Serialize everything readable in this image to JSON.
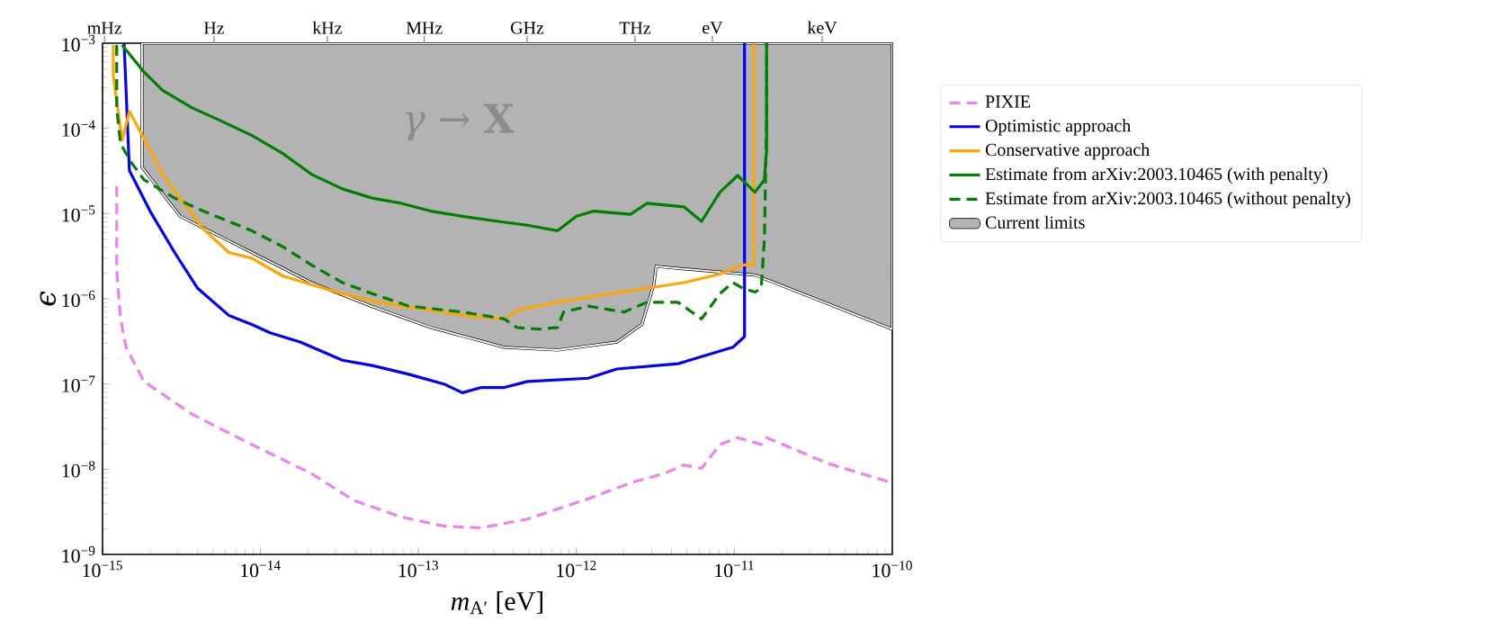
{
  "chart_data": {
    "type": "line",
    "xlabel": "*m*$_{A′}$ [eV]",
    "ylabel": "ϵ",
    "annotations": [
      "*γ* → **X**",
      {
        "text": "mHz",
        "x": 1.03e-15,
        "y": 0.001
      },
      {
        "text": "Hz",
        "x": 5.08e-15,
        "y": 0.001
      },
      {
        "text": "kHz",
        "x": 2.65e-14,
        "y": 0.001
      },
      {
        "text": "MHz",
        "x": 1.09e-13,
        "y": 0.001
      },
      {
        "text": "GHz",
        "x": 4.88e-13,
        "y": 0.001
      },
      {
        "text": "THz",
        "x": 2.35e-12,
        "y": 0.001
      },
      {
        "text": "eV",
        "x": 7.26e-12,
        "y": 0.001
      },
      {
        "text": "keV",
        "x": 3.6e-11,
        "y": 0.001
      }
    ],
    "log": "xy",
    "legend": "right",
    "xlim": [
      1e-15,
      1e-10
    ],
    "ylim": [
      1e-09,
      0.001
    ],
    "xticks": [
      {
        "value": 1e-15,
        "label": "10$^{−15}$"
      },
      {
        "value": 1e-14,
        "label": "10$^{−14}$"
      },
      {
        "value": 1e-13,
        "label": "10$^{−13}$"
      },
      {
        "value": 1e-12,
        "label": "10$^{−12}$"
      },
      {
        "value": 1e-11,
        "label": "10$^{−11}$"
      },
      {
        "value": 1e-10,
        "label": "10$^{−10}$"
      }
    ],
    "yticks": [
      {
        "value": 1e-09,
        "label": "10$^{−9}$"
      },
      {
        "value": 1e-08,
        "label": "10$^{−8}$"
      },
      {
        "value": 1e-07,
        "label": "10$^{−7}$"
      },
      {
        "value": 1e-06,
        "label": "10$^{−6}$"
      },
      {
        "value": 1e-05,
        "label": "10$^{−5}$"
      },
      {
        "value": 0.0001,
        "label": "10$^{−4}$"
      },
      {
        "value": 0.001,
        "label": "10$^{−3}$"
      }
    ],
    "series": [
      {
        "name": "PIXIE",
        "color": "#ee82ee",
        "line_style": "dashed",
        "x": [
          1.23e-15,
          1.23e-15,
          1.3e-15,
          1.41e-15,
          1.83e-15,
          3.7e-15,
          8.8e-15,
          2.1e-14,
          3.9e-14,
          7.8e-14,
          1.45e-13,
          2.5e-13,
          4.9e-13,
          1.19e-12,
          2.2e-12,
          3.6e-12,
          4.8e-12,
          6.2e-12,
          8.1e-12,
          1.05e-11,
          1.48e-11,
          1.6e-11,
          3.9e-11,
          1e-10
        ],
        "values": [
          2.1e-05,
          2.2e-06,
          5.9e-07,
          2.7e-07,
          1.07e-07,
          4.4e-08,
          1.95e-08,
          8.9e-09,
          4.3e-09,
          2.75e-09,
          2.15e-09,
          2.05e-09,
          2.6e-09,
          4.5e-09,
          6.9e-09,
          8.9e-09,
          1.12e-08,
          1.02e-08,
          1.95e-08,
          2.35e-08,
          1.95e-08,
          2.35e-08,
          1.17e-08,
          6.9e-09
        ]
      },
      {
        "name": "Optimistic approach",
        "color": "#0000ff",
        "line_style": "solid",
        "x": [
          1.37e-15,
          1.48e-15,
          2e-15,
          2.86e-15,
          4e-15,
          6.3e-15,
          8.8e-15,
          1.15e-14,
          1.8e-14,
          3.3e-14,
          5.1e-14,
          8.7e-14,
          1.45e-13,
          1.9e-13,
          2.5e-13,
          3.5e-13,
          4.9e-13,
          1.19e-12,
          1.8e-12,
          4.4e-12,
          9.8e-12,
          1.16e-11,
          1.16e-11
        ],
        "values": [
          0.001,
          3.2e-05,
          1.07e-05,
          3.5e-06,
          1.33e-06,
          6.4e-07,
          5e-07,
          4e-07,
          3.1e-07,
          1.9e-07,
          1.65e-07,
          1.3e-07,
          1e-07,
          7.9e-08,
          9.1e-08,
          9.1e-08,
          1.07e-07,
          1.17e-07,
          1.5e-07,
          1.73e-07,
          2.7e-07,
          3.6e-07,
          0.001
        ]
      },
      {
        "name": "Conservative approach",
        "color": "#ffa500",
        "line_style": "solid",
        "x": [
          1.17e-15,
          1.17e-15,
          1.33e-15,
          1.48e-15,
          1.83e-15,
          2.4e-15,
          3.1e-15,
          4.35e-15,
          6.3e-15,
          8.8e-15,
          1.38e-14,
          2.1e-14,
          3.3e-14,
          5.1e-14,
          7.8e-14,
          1.2e-13,
          1.9e-13,
          3.5e-13,
          4.3e-13,
          7.6e-13,
          1.66e-12,
          2.8e-12,
          4.8e-12,
          8.1e-12,
          1.13e-11,
          1.33e-11,
          1.33e-11
        ],
        "values": [
          0.00095,
          0.00042,
          7.2e-05,
          0.000158,
          7.6e-05,
          2.9e-05,
          1.52e-05,
          6.6e-06,
          3.5e-06,
          3e-06,
          1.86e-06,
          1.47e-06,
          1.15e-06,
          9.5e-07,
          8.2e-07,
          7.4e-07,
          6.4e-07,
          5.8e-07,
          7.4e-07,
          9.1e-07,
          1.15e-06,
          1.33e-06,
          1.55e-06,
          1.95e-06,
          2.5e-06,
          2.5e-06,
          0.001
        ]
      },
      {
        "name": "Estimate from arXiv:2003.10465 (with penalty)",
        "color": "#008000",
        "line_style": "solid",
        "x": [
          1.33e-15,
          1.83e-15,
          2.4e-15,
          3.7e-15,
          5.6e-15,
          8.8e-15,
          1.38e-14,
          2.1e-14,
          3.3e-14,
          5.1e-14,
          7.8e-14,
          1.2e-13,
          1.9e-13,
          3.2e-13,
          4.9e-13,
          7.6e-13,
          1e-12,
          1.29e-12,
          2.2e-12,
          2.8e-12,
          4.8e-12,
          6.2e-12,
          8.1e-12,
          1.05e-11,
          1.35e-11,
          1.55e-11,
          1.6e-11,
          1.6e-11
        ],
        "values": [
          0.00095,
          0.00046,
          0.00028,
          0.000174,
          0.000123,
          8.3e-05,
          5.1e-05,
          2.9e-05,
          1.95e-05,
          1.52e-05,
          1.32e-05,
          1.07e-05,
          9.3e-06,
          8.1e-06,
          7.3e-06,
          6.3e-06,
          9.3e-06,
          1.07e-05,
          9.8e-06,
          1.32e-05,
          1.2e-05,
          8.1e-06,
          1.78e-05,
          2.8e-05,
          1.78e-05,
          2.5e-05,
          5.6e-05,
          0.001
        ]
      },
      {
        "name": "Estimate from arXiv:2003.10465 (without penalty)",
        "color": "#008000",
        "line_style": "dashed",
        "x": [
          1.23e-15,
          1.23e-15,
          1.3e-15,
          1.52e-15,
          1.83e-15,
          2.86e-15,
          4.35e-15,
          8.8e-15,
          1.38e-14,
          2.1e-14,
          3.3e-14,
          5.1e-14,
          8.7e-14,
          1.9e-13,
          3.5e-13,
          4.2e-13,
          5.9e-13,
          7.6e-13,
          8.3e-13,
          1.19e-12,
          2e-12,
          2.8e-12,
          4.4e-12,
          6.2e-12,
          8.1e-12,
          9.8e-12,
          1.13e-11,
          1.35e-11,
          1.48e-11,
          1.55e-11,
          1.6e-11,
          1.6e-11
        ],
        "values": [
          0.00095,
          0.000174,
          6.6e-05,
          4e-05,
          2.5e-05,
          1.52e-05,
          1.07e-05,
          6.3e-06,
          4.1e-06,
          2.5e-06,
          1.55e-06,
          1.15e-06,
          8.2e-07,
          7e-07,
          5.8e-07,
          4.6e-07,
          4.4e-07,
          4.6e-07,
          7e-07,
          8.2e-07,
          7e-07,
          9.1e-07,
          9.1e-07,
          5.8e-07,
          1.15e-06,
          1.55e-06,
          1.33e-06,
          1.2e-06,
          1.33e-06,
          5e-06,
          0.000123,
          0.001
        ]
      },
      {
        "name": "Current limits",
        "type": "area",
        "color": "#b3b3b3",
        "x": [
          1.78e-15,
          1.78e-15,
          3.1e-15,
          8.8e-15,
          2.1e-14,
          5.1e-14,
          1.2e-13,
          3.5e-13,
          7.6e-13,
          1.8e-12,
          2.6e-12,
          3.1e-12,
          3.2e-12,
          1.35e-11,
          1e-10,
          1e-10
        ],
        "values": [
          0.001,
          3.5e-05,
          9.3e-06,
          3.5e-06,
          1.55e-06,
          8.1e-07,
          4.6e-07,
          2.7e-07,
          2.5e-07,
          3.1e-07,
          5e-07,
          1.5e-06,
          2.4e-06,
          1.9e-06,
          4.4e-07,
          0.001
        ]
      }
    ]
  }
}
